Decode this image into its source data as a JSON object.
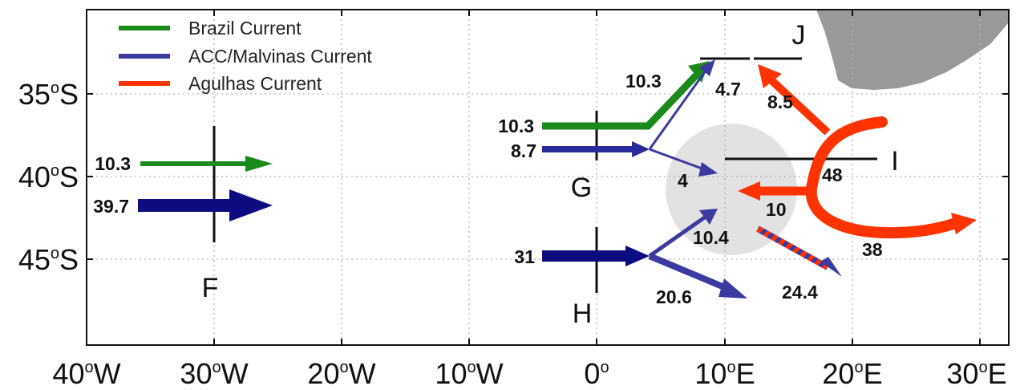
{
  "colors": {
    "brazil": "#1a8a1a",
    "acc_malvinas": "#3a3aa0",
    "acc_dark": "#0c0c80",
    "agulhas": "#ff3300",
    "land": "#999999",
    "eddy_zone": "#e2e2e2",
    "grid": "#b0b0b0"
  },
  "axes": {
    "lon_ticks": [
      {
        "num": "40",
        "unit": "W"
      },
      {
        "num": "30",
        "unit": "W"
      },
      {
        "num": "20",
        "unit": "W"
      },
      {
        "num": "10",
        "unit": "W"
      },
      {
        "num": "0",
        "unit": ""
      },
      {
        "num": "10",
        "unit": "E"
      },
      {
        "num": "20",
        "unit": "E"
      },
      {
        "num": "30",
        "unit": "E"
      }
    ],
    "lat_ticks": [
      {
        "num": "35",
        "unit": "S"
      },
      {
        "num": "40",
        "unit": "S"
      },
      {
        "num": "45",
        "unit": "S"
      }
    ],
    "degree_symbol": "o",
    "grid": true
  },
  "legend": {
    "position": "top-left",
    "items": [
      {
        "label": "Brazil Current",
        "color_key": "brazil"
      },
      {
        "label": "ACC/Malvinas Current",
        "color_key": "acc_malvinas"
      },
      {
        "label": "Agulhas Current",
        "color_key": "agulhas"
      }
    ]
  },
  "sections": {
    "F": "F",
    "G": "G",
    "H": "H",
    "I": "I",
    "J": "J"
  },
  "transports": {
    "f_brazil": "10.3",
    "f_acc": "39.7",
    "g_brazil_in": "10.3",
    "g_brazil_out": "10.3",
    "g_acc_in": "8.7",
    "j_acc": "4.7",
    "eddy_from_g": "4",
    "h_acc_in": "31",
    "h_to_eddy": "10.4",
    "h_east": "20.6",
    "j_agulhas": "8.5",
    "i_agulhas": "48",
    "agulhas_west": "10",
    "agulhas_retroflection": "38",
    "mixed_east": "24.4"
  }
}
